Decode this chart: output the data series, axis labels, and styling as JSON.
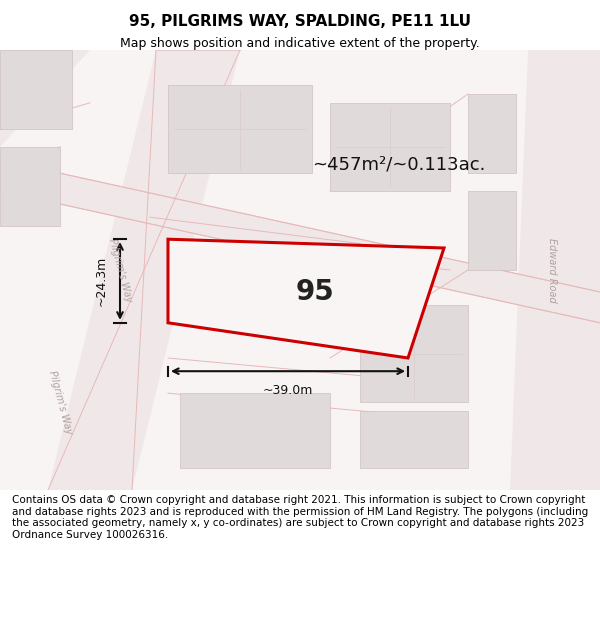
{
  "title": "95, PILGRIMS WAY, SPALDING, PE11 1LU",
  "subtitle": "Map shows position and indicative extent of the property.",
  "footer": "Contains OS data © Crown copyright and database right 2021. This information is subject to Crown copyright and database rights 2023 and is reproduced with the permission of HM Land Registry. The polygons (including the associated geometry, namely x, y co-ordinates) are subject to Crown copyright and database rights 2023 Ordnance Survey 100026316.",
  "area_label": "~457m²/~0.113ac.",
  "width_label": "~39.0m",
  "height_label": "~24.3m",
  "plot_number": "95",
  "bg_color": "#f5f0f0",
  "map_bg": "#f8f4f4",
  "road_color": "#e8c8c8",
  "building_color": "#e0dada",
  "building_edge": "#d0c0c0",
  "plot_fill": "#ffffff",
  "plot_edge": "#cc0000",
  "dim_color": "#111111",
  "title_fontsize": 11,
  "subtitle_fontsize": 9,
  "footer_fontsize": 7.5,
  "road_label_color": "#b0a0a0",
  "street_name_1": "Pilgrim's Way",
  "street_name_2": "Edward Road"
}
